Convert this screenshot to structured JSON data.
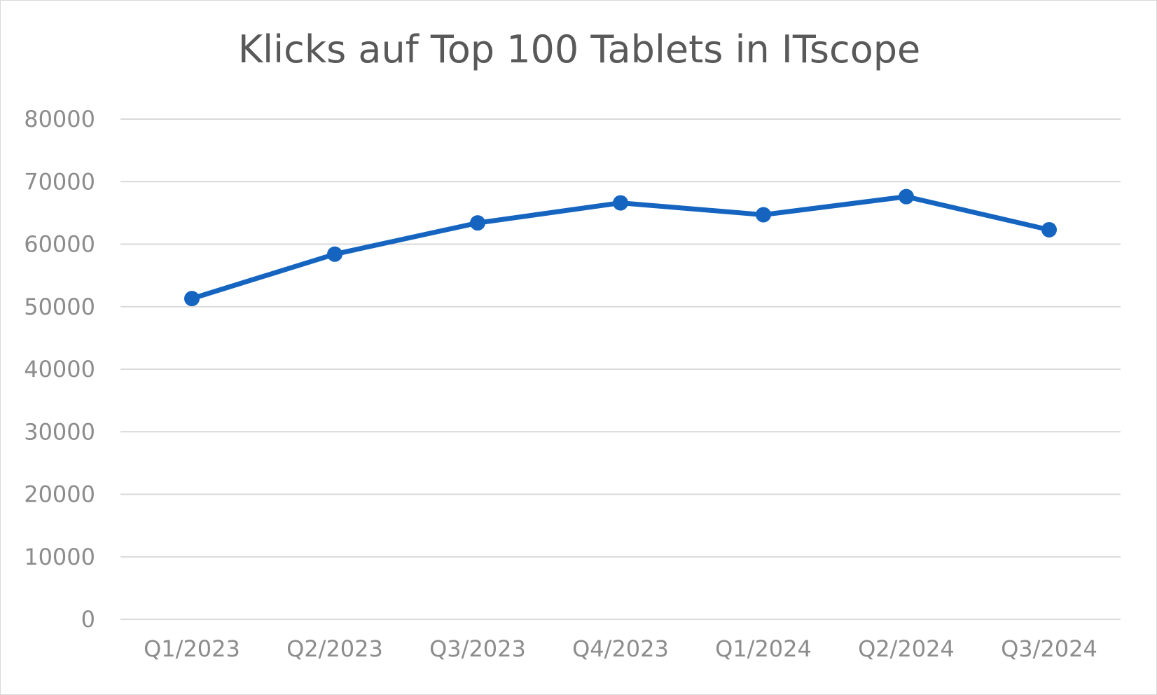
{
  "chart_data": {
    "type": "line",
    "title": "Klicks auf Top 100 Tablets in ITscope",
    "xlabel": "",
    "ylabel": "",
    "categories": [
      "Q1/2023",
      "Q2/2023",
      "Q3/2023",
      "Q4/2023",
      "Q1/2024",
      "Q2/2024",
      "Q3/2024"
    ],
    "series": [
      {
        "values": [
          51300,
          58400,
          63400,
          66600,
          64700,
          67600,
          62300
        ],
        "color": "#1565c0"
      }
    ],
    "ylim": [
      0,
      80000
    ],
    "yticks": [
      0,
      10000,
      20000,
      30000,
      40000,
      50000,
      60000,
      70000,
      80000
    ],
    "grid": true,
    "legend": "none"
  }
}
